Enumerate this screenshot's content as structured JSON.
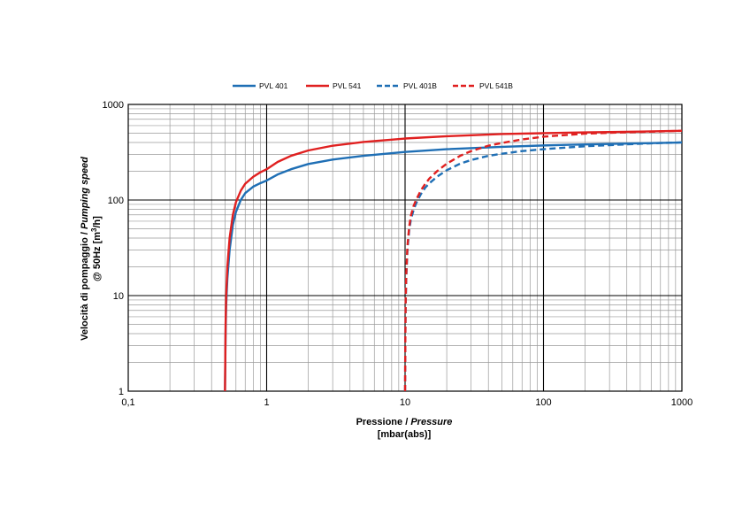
{
  "chart_data": {
    "type": "line",
    "x_scale": "log",
    "y_scale": "log",
    "xlim": [
      0.1,
      1000
    ],
    "ylim": [
      1,
      1000
    ],
    "grid": true,
    "legend_position": "top-center",
    "x_ticks": [
      "0,1",
      "1",
      "10",
      "100",
      "1000"
    ],
    "y_ticks": [
      "1",
      "10",
      "100",
      "1000"
    ],
    "xlabel": {
      "line1_plain": "Pressione / ",
      "line1_italic": "Pressure",
      "line2": "[mbar(abs)]"
    },
    "ylabel": {
      "line1_plain": "Velocità di pompaggio / ",
      "line1_italic": "Pumping speed",
      "line2_text": "@ 50Hz [m",
      "line2_sup": "3",
      "line2_end": "/h]"
    },
    "series": [
      {
        "name": "PVL 401",
        "color": "#1f6fb5",
        "dash": "solid",
        "x": [
          0.5,
          0.505,
          0.51,
          0.52,
          0.54,
          0.57,
          0.6,
          0.65,
          0.7,
          0.8,
          0.9,
          1,
          1.2,
          1.5,
          2,
          3,
          5,
          10,
          20,
          50,
          100,
          200,
          500,
          1000
        ],
        "y": [
          1,
          4,
          8,
          15,
          30,
          55,
          75,
          100,
          118,
          138,
          150,
          160,
          185,
          210,
          238,
          265,
          290,
          318,
          340,
          360,
          372,
          382,
          392,
          400
        ]
      },
      {
        "name": "PVL 541",
        "color": "#e02020",
        "dash": "solid",
        "x": [
          0.5,
          0.505,
          0.51,
          0.52,
          0.54,
          0.57,
          0.6,
          0.65,
          0.7,
          0.8,
          0.9,
          1,
          1.2,
          1.5,
          2,
          3,
          5,
          10,
          20,
          50,
          100,
          200,
          500,
          1000
        ],
        "y": [
          1,
          5,
          10,
          20,
          40,
          70,
          95,
          125,
          148,
          175,
          195,
          210,
          250,
          290,
          330,
          370,
          405,
          440,
          465,
          490,
          500,
          510,
          520,
          530
        ]
      },
      {
        "name": "PVL 401B",
        "color": "#1f6fb5",
        "dash": "dashed",
        "x": [
          10,
          10.05,
          10.1,
          10.2,
          10.4,
          10.7,
          11,
          11.5,
          12,
          13,
          14,
          15,
          17,
          20,
          25,
          30,
          40,
          50,
          70,
          100,
          150,
          200,
          300,
          500,
          700,
          1000
        ],
        "y": [
          1,
          4,
          8,
          15,
          30,
          48,
          62,
          78,
          92,
          115,
          135,
          150,
          175,
          205,
          240,
          262,
          290,
          305,
          325,
          340,
          355,
          365,
          375,
          388,
          395,
          400
        ]
      },
      {
        "name": "PVL 541B",
        "color": "#e02020",
        "dash": "dashed",
        "x": [
          10,
          10.05,
          10.1,
          10.2,
          10.4,
          10.7,
          11,
          11.5,
          12,
          13,
          14,
          15,
          17,
          20,
          25,
          30,
          40,
          50,
          70,
          100,
          150,
          200,
          300,
          500,
          700,
          1000
        ],
        "y": [
          1,
          4,
          9,
          17,
          33,
          52,
          68,
          86,
          100,
          126,
          148,
          168,
          200,
          240,
          290,
          325,
          370,
          395,
          430,
          460,
          480,
          495,
          505,
          515,
          522,
          530
        ]
      }
    ]
  }
}
